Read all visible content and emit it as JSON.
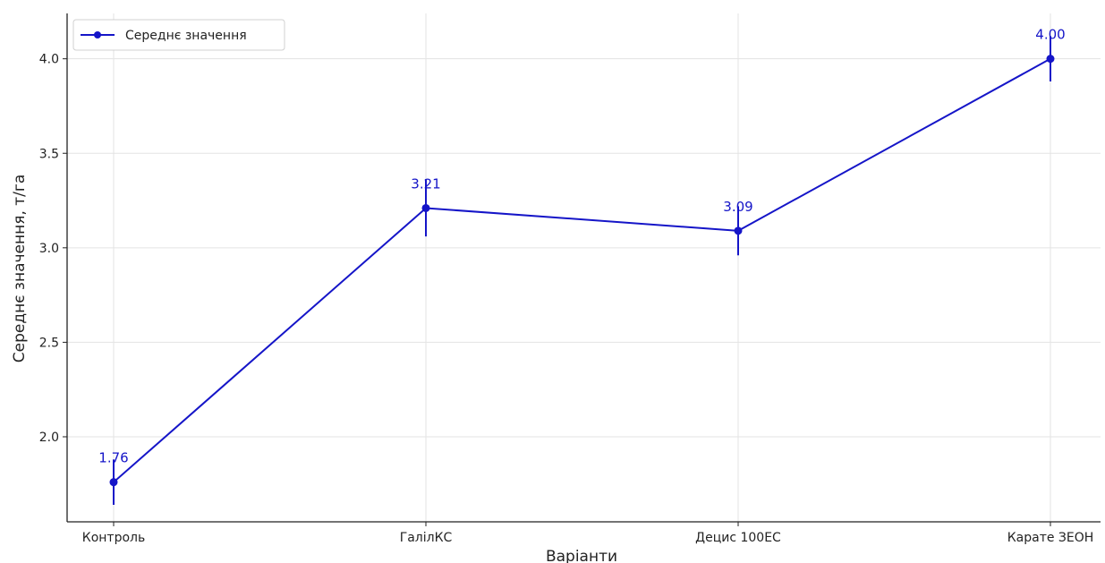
{
  "chart_data": {
    "type": "line",
    "xlabel": "Варіанти",
    "ylabel": "Середнє значення, т/га",
    "categories": [
      "Контроль",
      "ГалілКС",
      "Децис 100ЕС",
      "Карате ЗЕОН"
    ],
    "series": [
      {
        "name": "Середнє значення",
        "values": [
          1.76,
          3.21,
          3.09,
          4.0
        ],
        "error": [
          0.12,
          0.15,
          0.13,
          0.12
        ],
        "value_labels": [
          "1.76",
          "3.21",
          "3.09",
          "4.00"
        ],
        "color": "#1515c8"
      }
    ],
    "ylim": [
      1.55,
      4.24
    ],
    "yticks": [
      2.0,
      2.5,
      3.0,
      3.5,
      4.0
    ],
    "ytick_labels": [
      "2.0",
      "2.5",
      "3.0",
      "3.5",
      "4.0"
    ],
    "grid": true,
    "legend": "top-left"
  }
}
